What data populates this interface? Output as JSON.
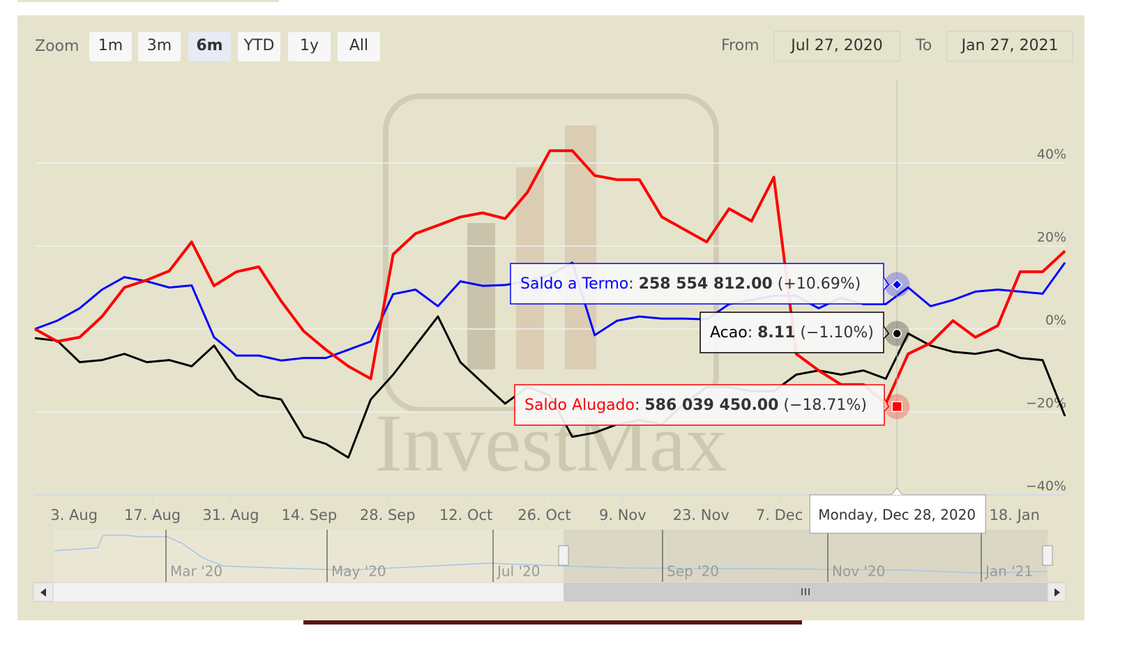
{
  "chart_data": {
    "type": "line",
    "watermark": "InvestMax",
    "zoom": {
      "label": "Zoom",
      "buttons": [
        "1m",
        "3m",
        "6m",
        "YTD",
        "1y",
        "All"
      ],
      "selected": 2
    },
    "range": {
      "from_label": "From",
      "from": "Jul 27, 2020",
      "to_label": "To",
      "to": "Jan 27, 2021"
    },
    "x": [
      "2020-07-27",
      "2020-07-31",
      "2020-08-04",
      "2020-08-08",
      "2020-08-12",
      "2020-08-16",
      "2020-08-20",
      "2020-08-24",
      "2020-08-28",
      "2020-09-01",
      "2020-09-05",
      "2020-09-09",
      "2020-09-13",
      "2020-09-17",
      "2020-09-21",
      "2020-09-25",
      "2020-09-29",
      "2020-10-03",
      "2020-10-07",
      "2020-10-11",
      "2020-10-15",
      "2020-10-19",
      "2020-10-23",
      "2020-10-27",
      "2020-10-31",
      "2020-11-04",
      "2020-11-08",
      "2020-11-12",
      "2020-11-16",
      "2020-11-20",
      "2020-11-24",
      "2020-11-28",
      "2020-12-02",
      "2020-12-06",
      "2020-12-10",
      "2020-12-14",
      "2020-12-18",
      "2020-12-22",
      "2020-12-26",
      "2020-12-30",
      "2021-01-03",
      "2021-01-07",
      "2021-01-11",
      "2021-01-15",
      "2021-01-19",
      "2021-01-23",
      "2021-01-27"
    ],
    "xlim": [
      "2020-07-27",
      "2021-01-27"
    ],
    "xticks": [
      {
        "value": "2020-08-03",
        "label": "3. Aug"
      },
      {
        "value": "2020-08-17",
        "label": "17. Aug"
      },
      {
        "value": "2020-08-31",
        "label": "31. Aug"
      },
      {
        "value": "2020-09-14",
        "label": "14. Sep"
      },
      {
        "value": "2020-09-28",
        "label": "28. Sep"
      },
      {
        "value": "2020-10-12",
        "label": "12. Oct"
      },
      {
        "value": "2020-10-26",
        "label": "26. Oct"
      },
      {
        "value": "2020-11-09",
        "label": "9. Nov"
      },
      {
        "value": "2020-11-23",
        "label": "23. Nov"
      },
      {
        "value": "2020-12-07",
        "label": "7. Dec"
      },
      {
        "value": "2020-12-21",
        "label": "21. Dec"
      },
      {
        "value": "2021-01-04",
        "label": "4. Jan"
      },
      {
        "value": "2021-01-18",
        "label": "18. Jan"
      }
    ],
    "ylim": [
      -40,
      60
    ],
    "yticks": [
      {
        "value": -40,
        "label": "−40%"
      },
      {
        "value": -20,
        "label": "−20%"
      },
      {
        "value": 0,
        "label": "0%"
      },
      {
        "value": 20,
        "label": "20%"
      },
      {
        "value": 40,
        "label": "40%"
      }
    ],
    "grid": true,
    "series": [
      {
        "name": "Saldo a Termo",
        "color": "#0000ff",
        "width": 3,
        "values": [
          0,
          2,
          5,
          9.5,
          12.5,
          11.5,
          10,
          10.5,
          -2,
          -6.4,
          -6.4,
          -7.6,
          -7,
          -7,
          -5,
          -3,
          8.4,
          9.5,
          5.5,
          11.5,
          10.4,
          10.6,
          11.5,
          13,
          16,
          -1.5,
          2,
          3,
          2.5,
          2.5,
          2.3,
          6,
          7,
          8,
          8,
          5,
          7.5,
          6,
          6,
          10,
          5.5,
          7,
          9,
          9.5,
          9,
          8.5,
          16
        ]
      },
      {
        "name": "Acao",
        "color": "#000000",
        "width": 3,
        "values": [
          -2.2,
          -2.8,
          -8,
          -7.5,
          -6,
          -8,
          -7.5,
          -9,
          -4,
          -12,
          -16,
          -17,
          -26,
          -27.7,
          -31,
          -17,
          -11,
          -4,
          3,
          -8,
          -13,
          -18,
          -14,
          -16,
          -26,
          -25,
          -23,
          -22,
          -23,
          -18,
          -14,
          -14,
          -15,
          -15,
          -11,
          -10,
          -11,
          -10,
          -12,
          -1.1,
          -4,
          -5.5,
          -6,
          -5,
          -7,
          -7.5,
          -21
        ]
      },
      {
        "name": "Saldo Alugado",
        "color": "#ff0000",
        "width": 4,
        "values": [
          0,
          -3,
          -2,
          3,
          10,
          11.8,
          14,
          21,
          10.4,
          13.8,
          15,
          6.7,
          -0.5,
          -5,
          -9,
          -12,
          18,
          23,
          25,
          27,
          28,
          26.6,
          33,
          43,
          43,
          37,
          36,
          36,
          27,
          24,
          21,
          29,
          26,
          36.6,
          -6,
          -10,
          -13.4,
          -13.4,
          -18,
          -6,
          -3.4,
          2,
          -2,
          0.8,
          13.8,
          13.8,
          18.8
        ]
      }
    ],
    "tooltip": {
      "x": "2020-12-28",
      "date_label": "Monday, Dec 28, 2020",
      "points": [
        {
          "change": 10.69,
          "change_label": "(+10.69%)",
          "value_label": "258 554 812.00"
        },
        {
          "change": -1.1,
          "change_label": "(−1.10%)",
          "value_label": "8.11"
        },
        {
          "change": -18.71,
          "change_label": "(−18.71%)",
          "value_label": "586 039 450.00"
        }
      ]
    },
    "navigator": {
      "labels": [
        "Mar '20",
        "May '20",
        "Jul '20",
        "Sep '20",
        "Nov '20",
        "Jan '21"
      ]
    }
  }
}
